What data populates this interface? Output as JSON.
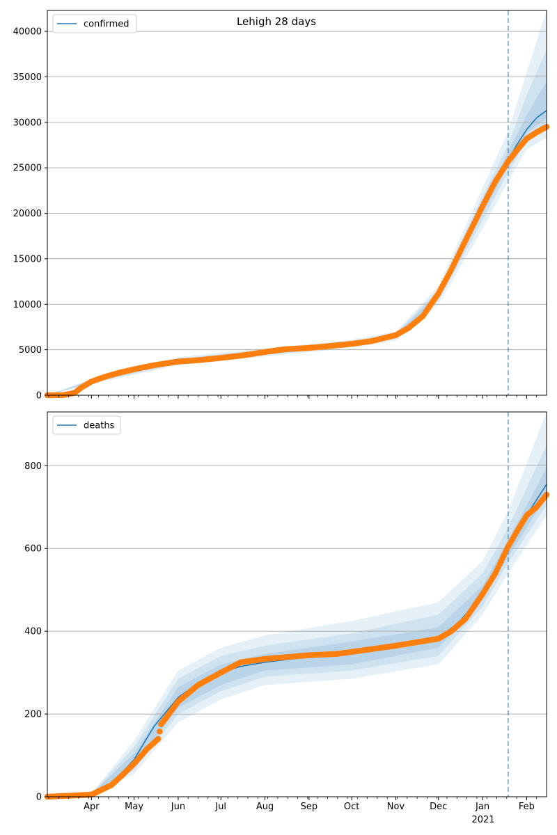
{
  "colors": {
    "model_line": "#1f77b4",
    "observed": "#ff7f0e",
    "band": "#1f77b4",
    "grid": "#b0b0b0",
    "cutoff": "#1f77b4"
  },
  "chart_data": [
    {
      "type": "line",
      "title": "Lehigh 28 days",
      "xlabel": "",
      "ylabel": "",
      "legend": {
        "placement": "top-left",
        "entries": [
          "confirmed"
        ]
      },
      "grid": {
        "y": true,
        "x": false
      },
      "x_range": [
        "2020-03-01",
        "2021-02-15"
      ],
      "ylim": [
        0,
        42300
      ],
      "yticks": [
        0,
        5000,
        10000,
        15000,
        20000,
        25000,
        30000,
        35000,
        40000
      ],
      "forecast_start": "2021-01-19",
      "series": [
        {
          "name": "confirmed",
          "kind": "model",
          "points": [
            [
              "2020-03-01",
              0
            ],
            [
              "2020-03-12",
              10
            ],
            [
              "2020-03-20",
              300
            ],
            [
              "2020-03-25",
              900
            ],
            [
              "2020-04-01",
              1500
            ],
            [
              "2020-04-10",
              2000
            ],
            [
              "2020-04-20",
              2500
            ],
            [
              "2020-05-01",
              2900
            ],
            [
              "2020-05-15",
              3350
            ],
            [
              "2020-06-01",
              3750
            ],
            [
              "2020-06-15",
              3900
            ],
            [
              "2020-07-01",
              4100
            ],
            [
              "2020-07-15",
              4350
            ],
            [
              "2020-08-01",
              4700
            ],
            [
              "2020-08-15",
              5000
            ],
            [
              "2020-09-01",
              5200
            ],
            [
              "2020-09-15",
              5400
            ],
            [
              "2020-10-01",
              5650
            ],
            [
              "2020-10-15",
              5950
            ],
            [
              "2020-11-01",
              6500
            ],
            [
              "2020-11-10",
              7300
            ],
            [
              "2020-11-20",
              8700
            ],
            [
              "2020-12-01",
              11000
            ],
            [
              "2020-12-10",
              13800
            ],
            [
              "2020-12-20",
              17000
            ],
            [
              "2021-01-01",
              20500
            ],
            [
              "2021-01-10",
              23500
            ],
            [
              "2021-01-19",
              25900
            ],
            [
              "2021-01-25",
              27500
            ],
            [
              "2021-02-01",
              29200
            ],
            [
              "2021-02-08",
              30500
            ],
            [
              "2021-02-15",
              31300
            ]
          ]
        },
        {
          "name": "",
          "kind": "observed",
          "points": [
            [
              "2020-03-01",
              0
            ],
            [
              "2020-03-12",
              10
            ],
            [
              "2020-03-20",
              250
            ],
            [
              "2020-03-25",
              850
            ],
            [
              "2020-04-01",
              1500
            ],
            [
              "2020-04-10",
              2000
            ],
            [
              "2020-04-20",
              2450
            ],
            [
              "2020-05-01",
              2850
            ],
            [
              "2020-05-15",
              3300
            ],
            [
              "2020-06-01",
              3700
            ],
            [
              "2020-06-15",
              3850
            ],
            [
              "2020-07-01",
              4100
            ],
            [
              "2020-07-15",
              4350
            ],
            [
              "2020-08-01",
              4750
            ],
            [
              "2020-08-15",
              5050
            ],
            [
              "2020-09-01",
              5200
            ],
            [
              "2020-09-15",
              5400
            ],
            [
              "2020-10-01",
              5650
            ],
            [
              "2020-10-15",
              5950
            ],
            [
              "2020-11-01",
              6600
            ],
            [
              "2020-11-10",
              7400
            ],
            [
              "2020-11-20",
              8700
            ],
            [
              "2020-12-01",
              11200
            ],
            [
              "2020-12-10",
              13800
            ],
            [
              "2020-12-20",
              17000
            ],
            [
              "2021-01-01",
              20800
            ],
            [
              "2021-01-10",
              23500
            ],
            [
              "2021-01-19",
              25700
            ],
            [
              "2021-01-25",
              26900
            ],
            [
              "2021-02-01",
              28200
            ],
            [
              "2021-02-08",
              28900
            ],
            [
              "2021-02-15",
              29500
            ]
          ]
        }
      ],
      "uncertainty_bands": [
        {
          "level": "outer",
          "x": [
            "2020-03-01",
            "2020-04-01",
            "2020-06-01",
            "2020-08-01",
            "2020-10-01",
            "2020-11-01",
            "2020-12-01",
            "2021-01-01",
            "2021-01-19",
            "2021-02-01",
            "2021-02-15"
          ],
          "lower": [
            0,
            1250,
            3300,
            4250,
            5200,
            6000,
            10000,
            18300,
            23500,
            27000,
            28300
          ],
          "upper": [
            0,
            1800,
            4200,
            5150,
            6100,
            7000,
            12000,
            22800,
            29000,
            35500,
            42300
          ]
        },
        {
          "level": "middle",
          "x": [
            "2020-03-01",
            "2020-04-01",
            "2020-06-01",
            "2020-08-01",
            "2020-10-01",
            "2020-11-01",
            "2020-12-01",
            "2021-01-01",
            "2021-01-19",
            "2021-02-01",
            "2021-02-15"
          ],
          "lower": [
            0,
            1350,
            3450,
            4400,
            5350,
            6200,
            10400,
            19200,
            24500,
            28000,
            29500
          ],
          "upper": [
            0,
            1680,
            4050,
            5000,
            5950,
            6800,
            11600,
            21900,
            27500,
            33000,
            38000
          ]
        },
        {
          "level": "inner",
          "x": [
            "2020-03-01",
            "2020-04-01",
            "2020-06-01",
            "2020-08-01",
            "2020-10-01",
            "2020-11-01",
            "2020-12-01",
            "2021-01-01",
            "2021-01-19",
            "2021-02-01",
            "2021-02-15"
          ],
          "lower": [
            0,
            1430,
            3600,
            4550,
            5500,
            6350,
            10700,
            19900,
            25200,
            28800,
            30400
          ],
          "upper": [
            0,
            1580,
            3900,
            4850,
            5800,
            6650,
            11300,
            21200,
            26700,
            30800,
            34500
          ]
        }
      ]
    },
    {
      "type": "line",
      "title": "",
      "xlabel": "",
      "ylabel": "",
      "legend": {
        "placement": "top-left",
        "entries": [
          "deaths"
        ]
      },
      "grid": {
        "y": true,
        "x": false
      },
      "x_range": [
        "2020-03-01",
        "2021-02-15"
      ],
      "ylim": [
        0,
        930
      ],
      "yticks": [
        0,
        200,
        400,
        600,
        800
      ],
      "xticks": [
        "Apr",
        "May",
        "Jun",
        "Jul",
        "Aug",
        "Sep",
        "Oct",
        "Nov",
        "Dec",
        "Jan",
        "Feb"
      ],
      "xtick_dates": [
        "2020-04-01",
        "2020-05-01",
        "2020-06-01",
        "2020-07-01",
        "2020-08-01",
        "2020-09-01",
        "2020-10-01",
        "2020-11-01",
        "2020-12-01",
        "2021-01-01",
        "2021-02-01"
      ],
      "year_label": "2021",
      "forecast_start": "2021-01-19",
      "series": [
        {
          "name": "deaths",
          "kind": "model",
          "points": [
            [
              "2020-03-01",
              0
            ],
            [
              "2020-04-01",
              5
            ],
            [
              "2020-04-15",
              30
            ],
            [
              "2020-05-01",
              90
            ],
            [
              "2020-05-15",
              170
            ],
            [
              "2020-06-01",
              240
            ],
            [
              "2020-06-15",
              275
            ],
            [
              "2020-07-01",
              300
            ],
            [
              "2020-07-15",
              315
            ],
            [
              "2020-08-01",
              325
            ],
            [
              "2020-09-01",
              338
            ],
            [
              "2020-10-01",
              350
            ],
            [
              "2020-11-01",
              362
            ],
            [
              "2020-12-01",
              385
            ],
            [
              "2020-12-15",
              420
            ],
            [
              "2021-01-01",
              490
            ],
            [
              "2021-01-19",
              600
            ],
            [
              "2021-02-01",
              680
            ],
            [
              "2021-02-15",
              755
            ]
          ]
        },
        {
          "name": "",
          "kind": "observed",
          "points": [
            [
              "2020-03-01",
              0
            ],
            [
              "2020-04-01",
              5
            ],
            [
              "2020-04-15",
              28
            ],
            [
              "2020-04-22",
              50
            ],
            [
              "2020-05-01",
              80
            ],
            [
              "2020-05-10",
              115
            ],
            [
              "2020-05-18",
              140
            ],
            [
              "2020-05-20",
              175
            ],
            [
              "2020-06-01",
              230
            ],
            [
              "2020-06-15",
              270
            ],
            [
              "2020-07-01",
              300
            ],
            [
              "2020-07-15",
              325
            ],
            [
              "2020-08-01",
              333
            ],
            [
              "2020-09-01",
              342
            ],
            [
              "2020-09-20",
              345
            ],
            [
              "2020-10-01",
              350
            ],
            [
              "2020-11-01",
              365
            ],
            [
              "2020-12-01",
              382
            ],
            [
              "2020-12-10",
              400
            ],
            [
              "2020-12-20",
              430
            ],
            [
              "2021-01-01",
              490
            ],
            [
              "2021-01-10",
              540
            ],
            [
              "2021-01-19",
              605
            ],
            [
              "2021-01-25",
              640
            ],
            [
              "2021-02-01",
              680
            ],
            [
              "2021-02-08",
              700
            ],
            [
              "2021-02-15",
              730
            ]
          ]
        }
      ],
      "uncertainty_bands": [
        {
          "level": "outer",
          "x": [
            "2020-03-01",
            "2020-04-01",
            "2020-05-01",
            "2020-06-01",
            "2020-07-01",
            "2020-08-01",
            "2020-10-01",
            "2020-12-01",
            "2021-01-01",
            "2021-01-19",
            "2021-02-15"
          ],
          "lower": [
            0,
            3,
            55,
            180,
            235,
            270,
            285,
            320,
            440,
            540,
            680
          ],
          "upper": [
            0,
            8,
            135,
            305,
            360,
            390,
            425,
            470,
            570,
            690,
            930
          ]
        },
        {
          "level": "middle",
          "x": [
            "2020-03-01",
            "2020-04-01",
            "2020-05-01",
            "2020-06-01",
            "2020-07-01",
            "2020-08-01",
            "2020-10-01",
            "2020-12-01",
            "2021-01-01",
            "2021-01-19",
            "2021-02-15"
          ],
          "lower": [
            0,
            4,
            65,
            200,
            255,
            290,
            305,
            340,
            460,
            565,
            705
          ],
          "upper": [
            0,
            7,
            120,
            285,
            340,
            365,
            395,
            440,
            540,
            650,
            850
          ]
        },
        {
          "level": "inner",
          "x": [
            "2020-03-01",
            "2020-04-01",
            "2020-05-01",
            "2020-06-01",
            "2020-07-01",
            "2020-08-01",
            "2020-10-01",
            "2020-12-01",
            "2021-01-01",
            "2021-01-19",
            "2021-02-15"
          ],
          "lower": [
            0,
            4.5,
            75,
            215,
            270,
            305,
            320,
            360,
            475,
            580,
            725
          ],
          "upper": [
            0,
            6,
            105,
            265,
            320,
            345,
            375,
            410,
            510,
            620,
            795
          ]
        }
      ]
    }
  ]
}
